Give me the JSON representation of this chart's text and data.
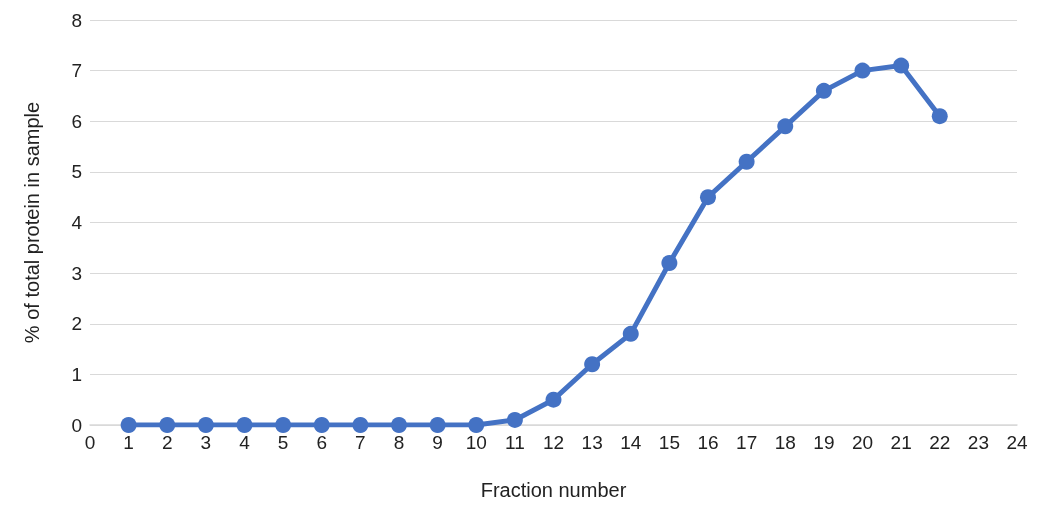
{
  "chart_data": {
    "type": "line",
    "xlabel": "Fraction number",
    "ylabel": "% of total protein in sample",
    "x": [
      1,
      2,
      3,
      4,
      5,
      6,
      7,
      8,
      9,
      10,
      11,
      12,
      13,
      14,
      15,
      16,
      17,
      18,
      19,
      20,
      21,
      22
    ],
    "series": [
      {
        "color": "#4472c4",
        "values": [
          0,
          0,
          0,
          0,
          0,
          0,
          0,
          0,
          0,
          0,
          0.1,
          0.5,
          1.2,
          1.8,
          3.2,
          4.5,
          5.2,
          5.9,
          6.6,
          7.0,
          7.1,
          6.1
        ]
      }
    ],
    "xlim": [
      0,
      24
    ],
    "xticks": [
      0,
      1,
      2,
      3,
      4,
      5,
      6,
      7,
      8,
      9,
      10,
      11,
      12,
      13,
      14,
      15,
      16,
      17,
      18,
      19,
      20,
      21,
      22,
      23,
      24
    ],
    "ylim": [
      0,
      8
    ],
    "yticks": [
      0,
      1,
      2,
      3,
      4,
      5,
      6,
      7,
      8
    ],
    "grid": "y",
    "marker": "circle",
    "line_style": "solid"
  }
}
